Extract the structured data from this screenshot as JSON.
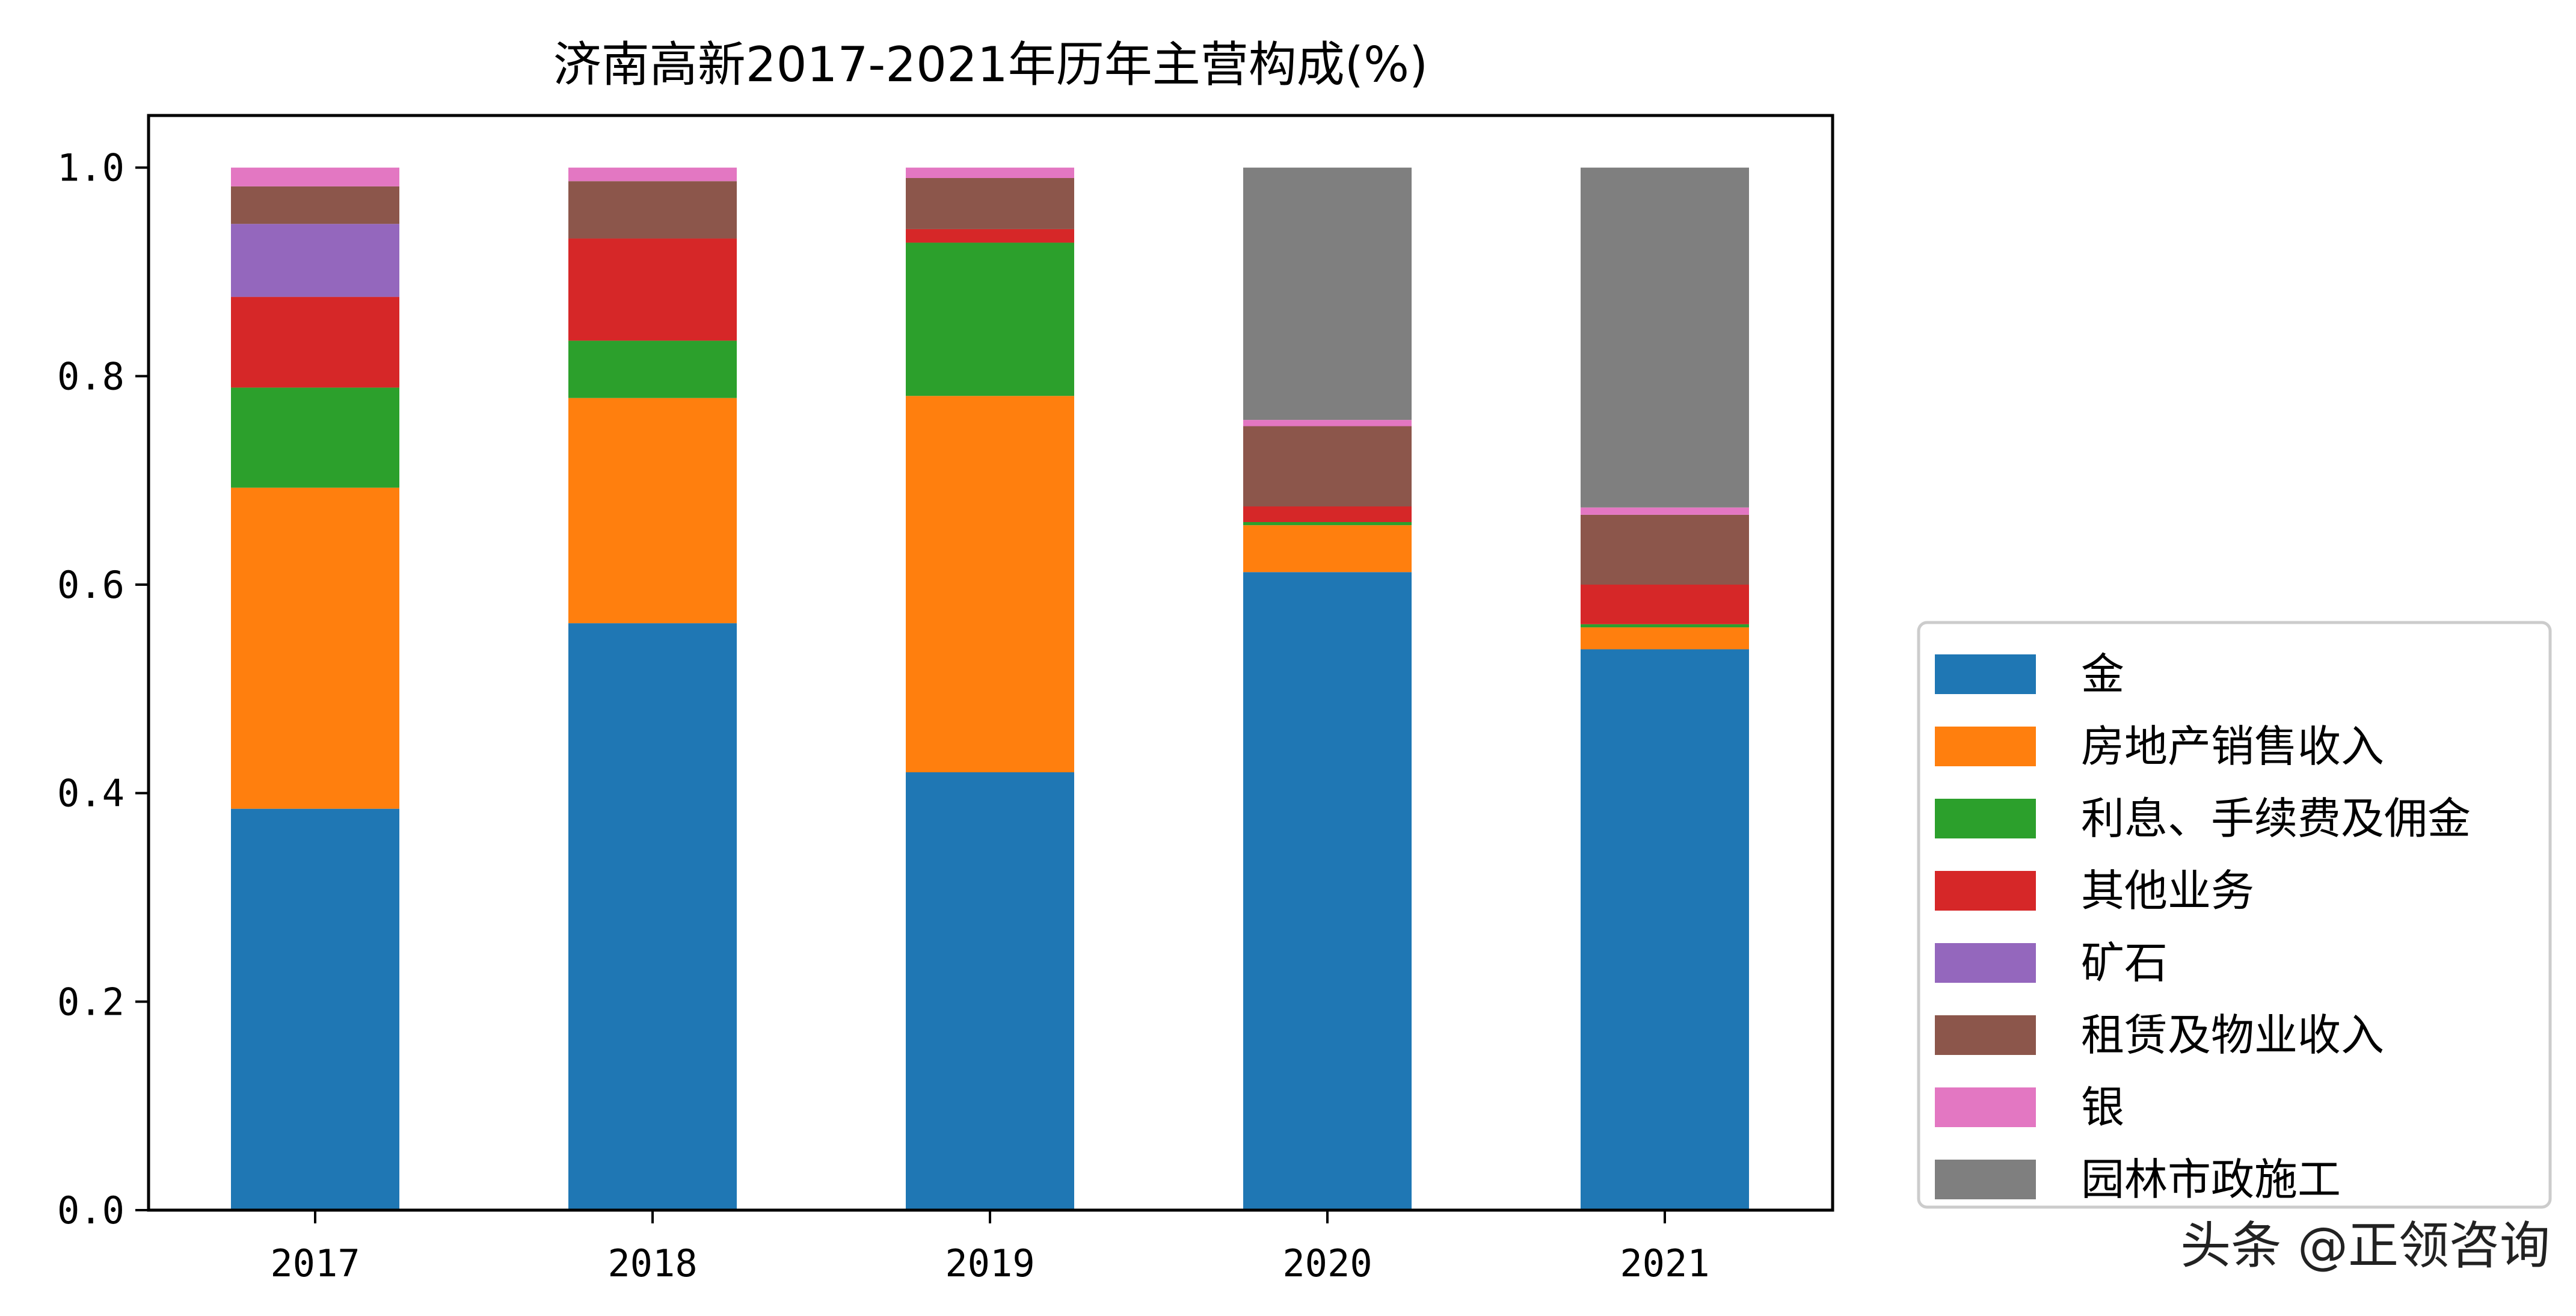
{
  "chart_data": {
    "type": "bar",
    "stacked": true,
    "title": "济南高新2017-2021年历年主营构成(%)",
    "xlabel": "",
    "ylabel": "",
    "categories": [
      "2017",
      "2018",
      "2019",
      "2020",
      "2021"
    ],
    "ylim": [
      0,
      1.05
    ],
    "yticks": [
      0.0,
      0.2,
      0.4,
      0.6,
      0.8,
      1.0
    ],
    "ytick_labels": [
      "0.0",
      "0.2",
      "0.4",
      "0.6",
      "0.8",
      "1.0"
    ],
    "grid": false,
    "legend_position": "lower-right-outside",
    "series": [
      {
        "name": "金",
        "color": "#1f77b4",
        "values": [
          0.385,
          0.563,
          0.42,
          0.612,
          0.538
        ]
      },
      {
        "name": "房地产销售收入",
        "color": "#ff7f0e",
        "values": [
          0.308,
          0.216,
          0.361,
          0.045,
          0.021
        ]
      },
      {
        "name": "利息、手续费及佣金",
        "color": "#2ca02c",
        "values": [
          0.096,
          0.055,
          0.147,
          0.003,
          0.003
        ]
      },
      {
        "name": "其他业务",
        "color": "#d62728",
        "values": [
          0.087,
          0.098,
          0.013,
          0.015,
          0.038
        ]
      },
      {
        "name": "矿石",
        "color": "#9467bd",
        "values": [
          0.07,
          0.0,
          0.0,
          0.0,
          0.0
        ]
      },
      {
        "name": "租赁及物业收入",
        "color": "#8c564b",
        "values": [
          0.036,
          0.055,
          0.049,
          0.077,
          0.067
        ]
      },
      {
        "name": "银",
        "color": "#e377c2",
        "values": [
          0.018,
          0.013,
          0.01,
          0.006,
          0.007
        ]
      },
      {
        "name": "园林市政施工",
        "color": "#7f7f7f",
        "values": [
          0.0,
          0.0,
          0.0,
          0.242,
          0.326
        ]
      }
    ]
  },
  "watermark": "头条 @正领咨询"
}
